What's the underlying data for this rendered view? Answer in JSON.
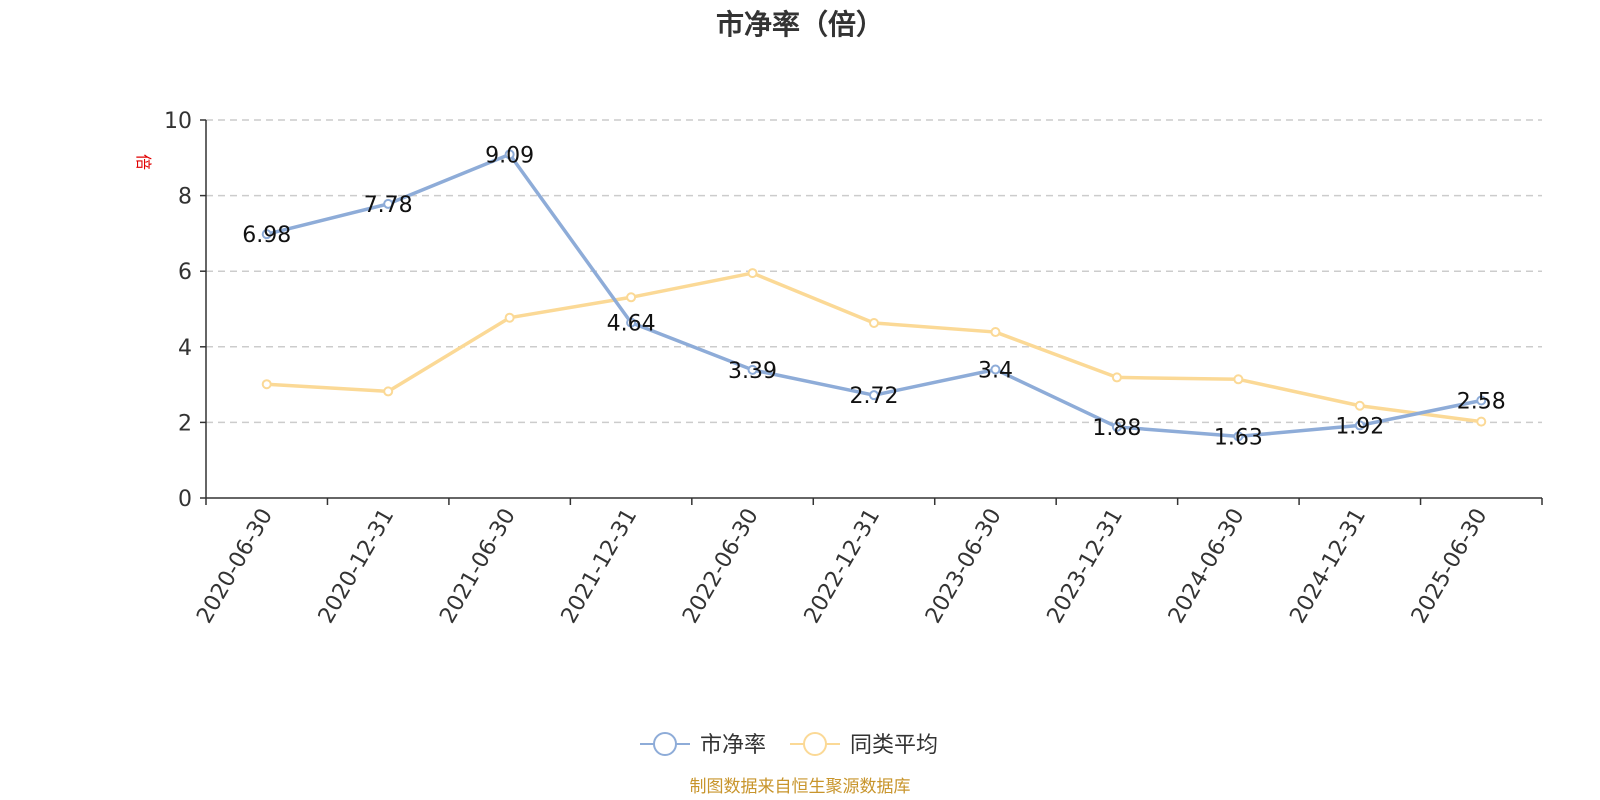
{
  "chart_data": {
    "type": "line",
    "title": "市净率（倍）",
    "ylabel": "倍",
    "ylim": [
      0,
      10
    ],
    "yticks": [
      0,
      2,
      4,
      6,
      8,
      10
    ],
    "grid": "horizontal-dashed",
    "legend_position": "bottom-center",
    "categories": [
      "2020-06-30",
      "2020-12-31",
      "2021-06-30",
      "2021-12-31",
      "2022-06-30",
      "2022-12-31",
      "2023-06-30",
      "2023-12-31",
      "2024-06-30",
      "2024-12-31",
      "2025-06-30"
    ],
    "series": [
      {
        "name": "市净率",
        "color": "#8eacd8",
        "values": [
          6.98,
          7.78,
          9.09,
          4.64,
          3.39,
          2.72,
          3.4,
          1.88,
          1.63,
          1.92,
          2.58
        ],
        "labels": [
          "6.98",
          "7.78",
          "9.09",
          "4.64",
          "3.39",
          "2.72",
          "3.4",
          "1.88",
          "1.63",
          "1.92",
          "2.58"
        ]
      },
      {
        "name": "同类平均",
        "color": "#fbd996",
        "values": [
          3.01,
          2.82,
          4.77,
          5.31,
          5.95,
          4.63,
          4.39,
          3.19,
          3.14,
          2.44,
          2.02
        ]
      }
    ],
    "source": "制图数据来自恒生聚源数据库"
  }
}
